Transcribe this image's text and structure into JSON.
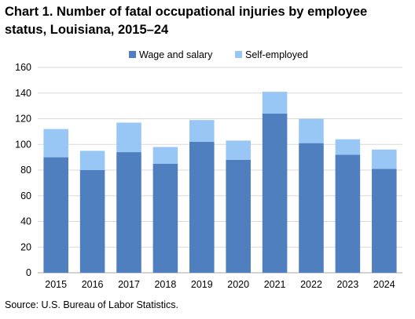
{
  "chart_data": {
    "type": "bar",
    "stacked": true,
    "title": "Chart 1. Number of fatal occupational injuries by employee status, Louisiana, 2015–24",
    "categories": [
      "2015",
      "2016",
      "2017",
      "2018",
      "2019",
      "2020",
      "2021",
      "2022",
      "2023",
      "2024"
    ],
    "series": [
      {
        "name": "Wage and salary",
        "color": "#4F7FBF",
        "values": [
          90,
          80,
          94,
          85,
          102,
          88,
          124,
          101,
          92,
          81
        ]
      },
      {
        "name": "Self-employed",
        "color": "#99C7F5",
        "values": [
          22,
          15,
          23,
          13,
          17,
          15,
          17,
          19,
          12,
          15
        ]
      }
    ],
    "xlabel": "",
    "ylabel": "",
    "ylim": [
      0,
      160
    ],
    "yticks": [
      0,
      20,
      40,
      60,
      80,
      100,
      120,
      140,
      160
    ],
    "grid": true,
    "legend": "top-center",
    "source": "Source: U.S. Bureau of Labor Statistics."
  }
}
